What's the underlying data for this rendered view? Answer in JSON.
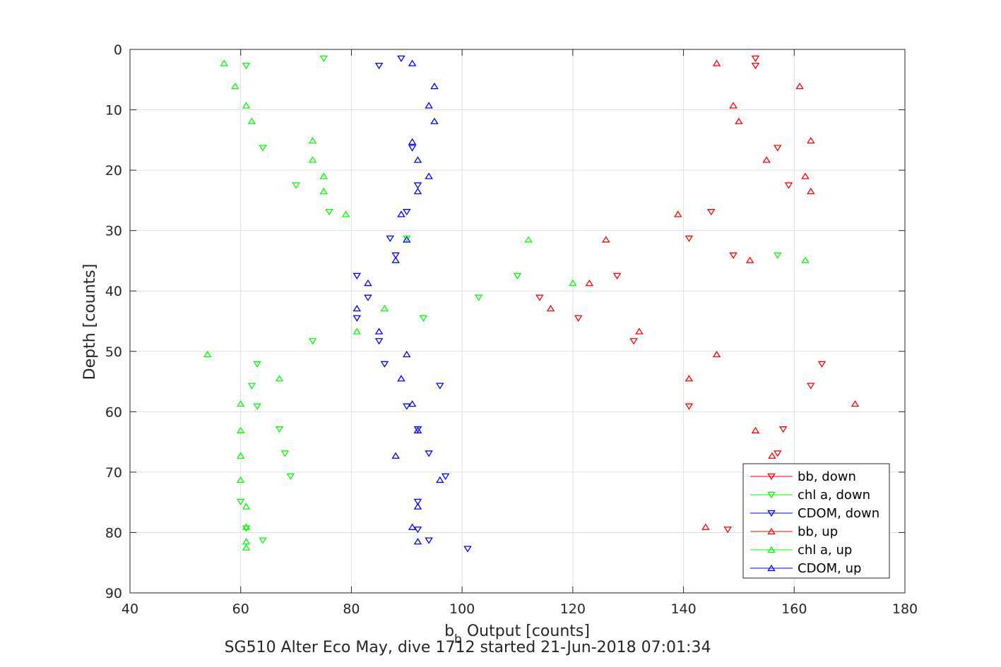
{
  "chart_data": {
    "type": "scatter",
    "title": "SG510 Alter Eco May, dive 1712 started 21-Jun-2018 07:01:34",
    "xlabel_main": "b",
    "xlabel_sub": "b",
    "xlabel_rest": " Output [counts]",
    "ylabel": "Depth [counts]",
    "xlim": [
      40,
      180
    ],
    "ylim": [
      0,
      90
    ],
    "y_reversed": true,
    "grid": true,
    "legend_position": "bottom-right",
    "xticks": [
      "40",
      "60",
      "80",
      "100",
      "120",
      "140",
      "160",
      "180"
    ],
    "yticks": [
      "0",
      "10",
      "20",
      "30",
      "40",
      "50",
      "60",
      "70",
      "80",
      "90"
    ],
    "series": [
      {
        "name": "bb, down",
        "color": "#ff0000",
        "marker": "triangle-down",
        "points": [
          [
            153,
            1.5
          ],
          [
            153,
            2.7
          ],
          [
            157,
            16.3
          ],
          [
            159,
            22.5
          ],
          [
            145,
            26.9
          ],
          [
            141,
            31.3
          ],
          [
            149,
            34.1
          ],
          [
            128,
            37.5
          ],
          [
            114,
            41.1
          ],
          [
            121,
            44.5
          ],
          [
            131,
            48.3
          ],
          [
            165,
            52.1
          ],
          [
            163,
            55.7
          ],
          [
            141,
            59.1
          ],
          [
            158,
            62.9
          ],
          [
            157,
            66.9
          ],
          [
            148,
            79.5
          ]
        ]
      },
      {
        "name": "chl a, down",
        "color": "#00ff00",
        "marker": "triangle-down",
        "points": [
          [
            75,
            1.5
          ],
          [
            61,
            2.7
          ],
          [
            64,
            16.3
          ],
          [
            70,
            22.5
          ],
          [
            76,
            26.9
          ],
          [
            90,
            31.3
          ],
          [
            157,
            34.1
          ],
          [
            110,
            37.5
          ],
          [
            103,
            41.1
          ],
          [
            93,
            44.5
          ],
          [
            73,
            48.3
          ],
          [
            63,
            52.1
          ],
          [
            62,
            55.7
          ],
          [
            63,
            59.1
          ],
          [
            67,
            62.9
          ],
          [
            68,
            66.9
          ],
          [
            69,
            70.7
          ],
          [
            60,
            74.9
          ],
          [
            61,
            79.3
          ],
          [
            64,
            81.3
          ]
        ]
      },
      {
        "name": "CDOM, down",
        "color": "#0000ff",
        "marker": "triangle-down",
        "points": [
          [
            89,
            1.5
          ],
          [
            85,
            2.7
          ],
          [
            91,
            16.3
          ],
          [
            92,
            22.5
          ],
          [
            90,
            26.9
          ],
          [
            87,
            31.3
          ],
          [
            88,
            34.1
          ],
          [
            81,
            37.5
          ],
          [
            83,
            41.1
          ],
          [
            81,
            44.5
          ],
          [
            85,
            48.3
          ],
          [
            86,
            52.1
          ],
          [
            96,
            55.7
          ],
          [
            90,
            59.1
          ],
          [
            92,
            62.9
          ],
          [
            94,
            66.9
          ],
          [
            97,
            70.7
          ],
          [
            92,
            74.9
          ],
          [
            92,
            79.5
          ],
          [
            94,
            81.3
          ],
          [
            101,
            82.7
          ]
        ]
      },
      {
        "name": "bb, up",
        "color": "#ff0000",
        "marker": "triangle-up",
        "points": [
          [
            146,
            2.3
          ],
          [
            161,
            6.1
          ],
          [
            149,
            9.3
          ],
          [
            150,
            11.9
          ],
          [
            163,
            15.1
          ],
          [
            155,
            18.3
          ],
          [
            162,
            21.0
          ],
          [
            163,
            23.5
          ],
          [
            139,
            27.3
          ],
          [
            126,
            31.5
          ],
          [
            152,
            34.9
          ],
          [
            123,
            38.7
          ],
          [
            116,
            42.9
          ],
          [
            132,
            46.7
          ],
          [
            146,
            50.5
          ],
          [
            141,
            54.5
          ],
          [
            171,
            58.7
          ],
          [
            153,
            63.1
          ],
          [
            156,
            67.3
          ],
          [
            144,
            79.1
          ]
        ]
      },
      {
        "name": "chl a, up",
        "color": "#00ff00",
        "marker": "triangle-up",
        "points": [
          [
            57,
            2.3
          ],
          [
            59,
            6.1
          ],
          [
            61,
            9.3
          ],
          [
            62,
            11.9
          ],
          [
            73,
            15.1
          ],
          [
            73,
            18.3
          ],
          [
            75,
            21.0
          ],
          [
            75,
            23.5
          ],
          [
            79,
            27.3
          ],
          [
            112,
            31.5
          ],
          [
            162,
            34.9
          ],
          [
            120,
            38.7
          ],
          [
            86,
            42.9
          ],
          [
            81,
            46.7
          ],
          [
            54,
            50.5
          ],
          [
            67,
            54.5
          ],
          [
            60,
            58.7
          ],
          [
            60,
            63.1
          ],
          [
            60,
            67.3
          ],
          [
            60,
            71.3
          ],
          [
            61,
            75.7
          ],
          [
            61,
            79.1
          ],
          [
            61,
            81.5
          ],
          [
            61,
            82.5
          ]
        ]
      },
      {
        "name": "CDOM, up",
        "color": "#0000ff",
        "marker": "triangle-up",
        "points": [
          [
            91,
            2.3
          ],
          [
            95,
            6.1
          ],
          [
            94,
            9.3
          ],
          [
            95,
            11.9
          ],
          [
            91,
            15.3
          ],
          [
            92,
            18.3
          ],
          [
            94,
            21.0
          ],
          [
            92,
            23.5
          ],
          [
            89,
            27.3
          ],
          [
            90,
            31.5
          ],
          [
            88,
            34.9
          ],
          [
            83,
            38.7
          ],
          [
            81,
            42.9
          ],
          [
            85,
            46.7
          ],
          [
            90,
            50.5
          ],
          [
            89,
            54.5
          ],
          [
            91,
            58.7
          ],
          [
            92,
            63.1
          ],
          [
            88,
            67.3
          ],
          [
            96,
            71.3
          ],
          [
            92,
            75.7
          ],
          [
            91,
            79.1
          ],
          [
            92,
            81.5
          ]
        ]
      }
    ]
  }
}
